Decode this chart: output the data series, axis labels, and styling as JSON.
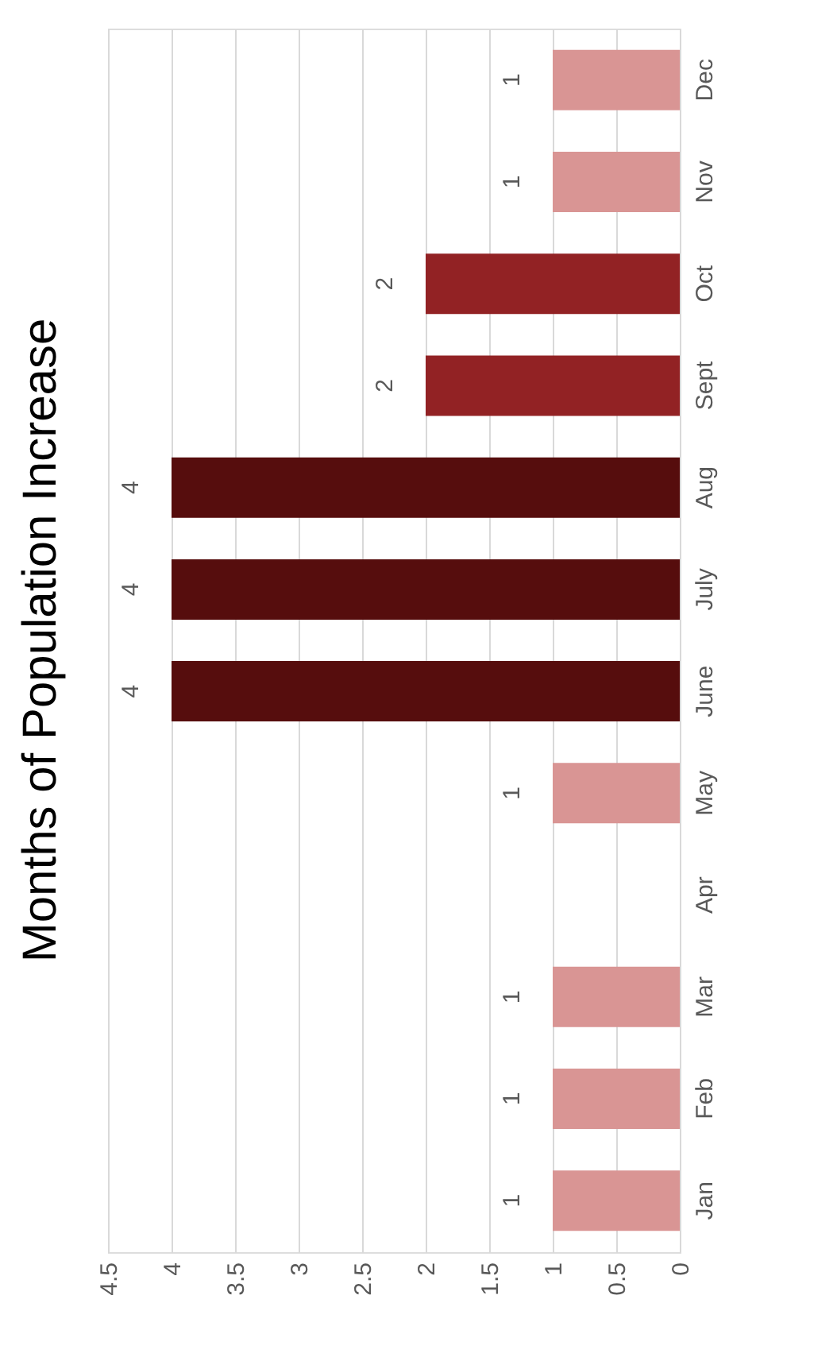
{
  "chart_data": {
    "type": "bar",
    "orientation": "horizontal",
    "title": "Months of Population Increase",
    "categories": [
      "Dec",
      "Nov",
      "Oct",
      "Sept",
      "Aug",
      "July",
      "June",
      "May",
      "Apr",
      "Mar",
      "Feb",
      "Jan"
    ],
    "values": [
      1,
      1,
      2,
      2,
      4,
      4,
      4,
      1,
      0,
      1,
      1,
      1
    ],
    "colors": [
      "#d99594",
      "#d99594",
      "#922224",
      "#922224",
      "#560d0d",
      "#560d0d",
      "#560d0d",
      "#d99594",
      "#d99594",
      "#d99594",
      "#d99594",
      "#d99594"
    ],
    "value_labels": [
      "1",
      "1",
      "2",
      "2",
      "4",
      "4",
      "4",
      "1",
      null,
      "1",
      "1",
      "1"
    ],
    "xlim": [
      4.5,
      0
    ],
    "xticks": [
      0,
      0.5,
      1,
      1.5,
      2,
      2.5,
      3,
      3.5,
      4,
      4.5
    ],
    "grid": "x"
  }
}
